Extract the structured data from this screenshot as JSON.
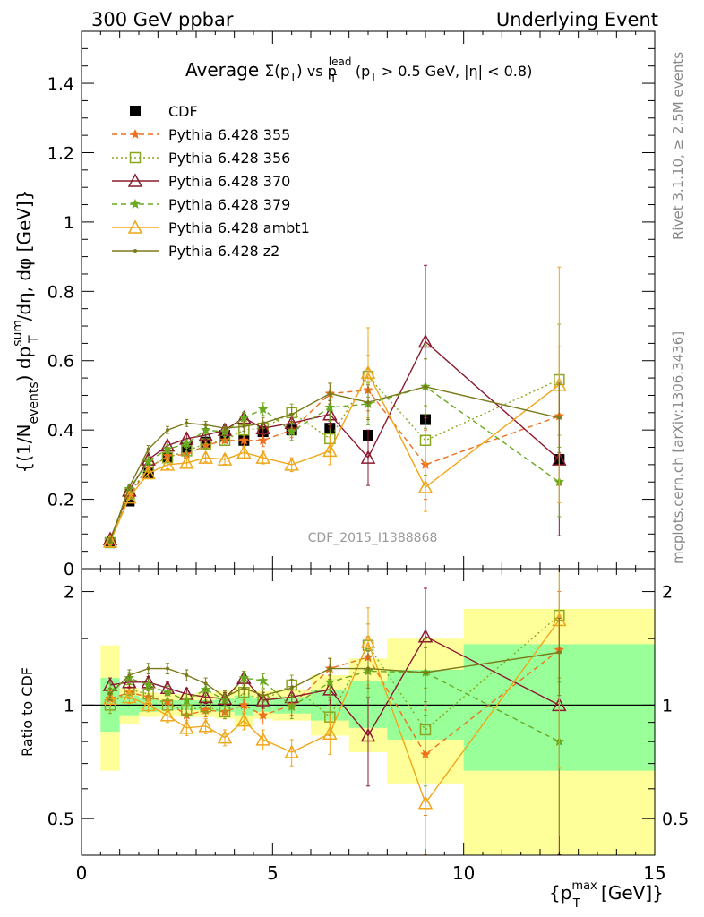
{
  "header": {
    "left": "300 GeV ppbar",
    "right": "Underlying Event"
  },
  "side_labels": {
    "rivet": "Rivet 3.1.10, ≥ 2.5M events",
    "mcplots": "mcplots.cern.ch [arXiv:1306.3436]"
  },
  "watermark": "CDF_2015_I1388868",
  "title": {
    "prefix": "Average ",
    "sigma": "Σ(p",
    "sub_t": "T",
    "close": ")",
    "vs": " vs p",
    "sup_lead": "lead",
    "sub_t2": "T",
    "cut_a": " (p",
    "sub_t3": "T",
    "cut_b": " > 0.5 GeV, |η| < 0.8)"
  },
  "ylabel_main": {
    "a": "{(1/N",
    "sub_events": "events",
    "b": ") dp",
    "sup_sum": "sum",
    "sub_t": "T",
    "c": "/dη, dφ [GeV]}"
  },
  "ylabel_ratio": "Ratio to CDF",
  "xlabel": {
    "a": "{p",
    "sup_max": "max",
    "sub_t": "T",
    "b": " [GeV]}"
  },
  "colors": {
    "data": "#000000",
    "p355": "#ee6f1c",
    "p356": "#8aa620",
    "p370": "#8b1a2f",
    "p379": "#6aaa20",
    "ambt1": "#f0a619",
    "z2": "#7a7a1a",
    "band_outer": "#ffff99",
    "band_inner": "#99ff99"
  },
  "chart_data": [
    {
      "type": "scatter",
      "panel": "main",
      "title": "Average Σ(pT) vs pT^lead (pT > 0.5 GeV, |η| < 0.8)",
      "xlabel": "{pT^max [GeV]}",
      "ylabel": "{(1/N_events) dpT^sum/dη, dφ [GeV]}",
      "xlim": [
        0,
        15
      ],
      "ylim": [
        0,
        1.55
      ],
      "yticks": [
        0,
        0.2,
        0.4,
        0.6,
        0.8,
        1,
        1.2,
        1.4
      ],
      "xticks": [
        0,
        5,
        10,
        15
      ],
      "grid": false,
      "legend_position": "top-left",
      "x": [
        0.75,
        1.25,
        1.75,
        2.25,
        2.75,
        3.25,
        3.75,
        4.25,
        4.75,
        5.5,
        6.5,
        7.5,
        9.0,
        12.5
      ],
      "series": [
        {
          "name": "CDF",
          "key": "data",
          "marker": "square",
          "line": "none",
          "values": [
            0.075,
            0.195,
            0.275,
            0.32,
            0.35,
            0.365,
            0.385,
            0.37,
            0.395,
            0.4,
            0.405,
            0.385,
            0.43,
            0.315
          ]
        },
        {
          "name": "Pythia 6.428 355",
          "key": "p355",
          "marker": "star",
          "line": "dash",
          "values": [
            0.078,
            0.21,
            0.29,
            0.325,
            0.33,
            0.355,
            0.37,
            0.37,
            0.37,
            0.4,
            0.505,
            0.515,
            0.3,
            0.44
          ],
          "err": [
            0.01,
            0.01,
            0.012,
            0.012,
            0.012,
            0.012,
            0.014,
            0.016,
            0.018,
            0.022,
            0.03,
            0.06,
            0.1,
            0.2
          ]
        },
        {
          "name": "Pythia 6.428 356",
          "key": "p356",
          "marker": "open-square",
          "line": "dot",
          "values": [
            0.075,
            0.215,
            0.295,
            0.32,
            0.34,
            0.36,
            0.37,
            0.4,
            0.405,
            0.45,
            0.375,
            0.555,
            0.37,
            0.545
          ],
          "err": [
            0.01,
            0.01,
            0.012,
            0.012,
            0.012,
            0.012,
            0.014,
            0.016,
            0.018,
            0.025,
            0.04,
            0.06,
            0.1,
            0.16
          ]
        },
        {
          "name": "Pythia 6.428 370",
          "key": "p370",
          "marker": "open-triangle",
          "line": "solid",
          "values": [
            0.085,
            0.225,
            0.315,
            0.355,
            0.375,
            0.385,
            0.4,
            0.435,
            0.405,
            0.42,
            0.445,
            0.32,
            0.655,
            0.315
          ],
          "err": [
            0.01,
            0.01,
            0.012,
            0.012,
            0.012,
            0.012,
            0.014,
            0.016,
            0.018,
            0.025,
            0.04,
            0.08,
            0.22,
            0.22
          ]
        },
        {
          "name": "Pythia 6.428 379",
          "key": "p379",
          "marker": "star",
          "line": "dash",
          "values": [
            0.082,
            0.23,
            0.31,
            0.345,
            0.36,
            0.4,
            0.395,
            0.435,
            0.46,
            0.395,
            0.465,
            0.475,
            0.525,
            0.25
          ],
          "err": [
            0.01,
            0.01,
            0.012,
            0.012,
            0.012,
            0.012,
            0.014,
            0.016,
            0.018,
            0.025,
            0.04,
            0.06,
            0.12,
            0.1
          ]
        },
        {
          "name": "Pythia 6.428 ambt1",
          "key": "ambt1",
          "marker": "open-triangle",
          "line": "solid",
          "values": [
            0.078,
            0.205,
            0.275,
            0.3,
            0.305,
            0.32,
            0.315,
            0.335,
            0.32,
            0.3,
            0.34,
            0.565,
            0.235,
            0.53
          ],
          "err": [
            0.01,
            0.01,
            0.012,
            0.012,
            0.012,
            0.012,
            0.014,
            0.016,
            0.018,
            0.02,
            0.04,
            0.13,
            0.07,
            0.34
          ]
        },
        {
          "name": "Pythia 6.428 z2",
          "key": "z2",
          "marker": "dot",
          "line": "solid",
          "values": [
            0.08,
            0.235,
            0.345,
            0.4,
            0.42,
            0.415,
            0.405,
            0.41,
            0.42,
            0.445,
            0.505,
            0.48,
            0.525,
            0.435
          ],
          "err": [
            0.008,
            0.008,
            0.01,
            0.01,
            0.01,
            0.01,
            0.012,
            0.014,
            0.016,
            0.02,
            0.03,
            0.05,
            0.08,
            0.1
          ]
        }
      ]
    },
    {
      "type": "line",
      "panel": "ratio",
      "ylabel": "Ratio to CDF",
      "xlabel": "{pT^max [GeV]}",
      "xlim": [
        0,
        15
      ],
      "ylim": [
        0.4,
        2.3
      ],
      "y_scale": "log",
      "yticks": [
        0.5,
        1,
        2
      ],
      "xticks": [
        0,
        5,
        10,
        15
      ],
      "grid": false,
      "reference_line": 1,
      "bands": {
        "bin_edges": [
          0.5,
          1.0,
          1.5,
          2.0,
          2.5,
          3.0,
          3.5,
          4.0,
          4.5,
          5.0,
          6.0,
          7.0,
          8.0,
          10.0,
          15.0
        ],
        "outer_low": [
          0.67,
          0.89,
          0.93,
          0.94,
          0.93,
          0.93,
          0.92,
          0.88,
          0.92,
          0.91,
          0.83,
          0.75,
          0.62,
          0.33
        ],
        "outer_high": [
          1.44,
          1.11,
          1.08,
          1.07,
          1.07,
          1.08,
          1.09,
          1.12,
          1.09,
          1.1,
          1.2,
          1.33,
          1.5,
          1.8
        ],
        "inner_low": [
          0.85,
          0.94,
          0.96,
          0.97,
          0.97,
          0.97,
          0.96,
          0.94,
          0.96,
          0.95,
          0.91,
          0.87,
          0.81,
          0.67
        ],
        "inner_high": [
          1.18,
          1.06,
          1.04,
          1.03,
          1.03,
          1.03,
          1.04,
          1.06,
          1.04,
          1.05,
          1.1,
          1.16,
          1.24,
          1.45
        ]
      },
      "x": [
        0.75,
        1.25,
        1.75,
        2.25,
        2.75,
        3.25,
        3.75,
        4.25,
        4.75,
        5.5,
        6.5,
        7.5,
        9.0,
        12.5
      ],
      "series": [
        {
          "name": "Pythia 6.428 355",
          "key": "p355",
          "marker": "star",
          "line": "dash",
          "values": [
            1.04,
            1.08,
            1.05,
            1.02,
            0.94,
            0.97,
            0.96,
            1.0,
            0.94,
            1.0,
            1.25,
            1.34,
            0.74,
            1.4
          ],
          "err": [
            0.05,
            0.04,
            0.04,
            0.04,
            0.04,
            0.04,
            0.04,
            0.05,
            0.05,
            0.06,
            0.08,
            0.18,
            0.23,
            0.6
          ]
        },
        {
          "name": "Pythia 6.428 356",
          "key": "p356",
          "marker": "open-square",
          "line": "dot",
          "values": [
            1.0,
            1.1,
            1.07,
            1.0,
            0.97,
            0.99,
            0.96,
            1.08,
            1.03,
            1.13,
            0.93,
            1.44,
            0.86,
            1.73
          ],
          "err": [
            0.05,
            0.04,
            0.04,
            0.04,
            0.04,
            0.04,
            0.04,
            0.05,
            0.05,
            0.07,
            0.1,
            0.2,
            0.25,
            0.55
          ]
        },
        {
          "name": "Pythia 6.428 370",
          "key": "p370",
          "marker": "open-triangle",
          "line": "solid",
          "values": [
            1.13,
            1.15,
            1.15,
            1.11,
            1.07,
            1.05,
            1.04,
            1.18,
            1.03,
            1.05,
            1.1,
            0.83,
            1.52,
            1.0
          ],
          "err": [
            0.05,
            0.04,
            0.04,
            0.04,
            0.04,
            0.04,
            0.04,
            0.05,
            0.05,
            0.07,
            0.1,
            0.22,
            0.52,
            0.7
          ]
        },
        {
          "name": "Pythia 6.428 379",
          "key": "p379",
          "marker": "star",
          "line": "dash",
          "values": [
            1.09,
            1.18,
            1.13,
            1.08,
            1.03,
            1.1,
            1.03,
            1.18,
            1.16,
            0.99,
            1.15,
            1.23,
            1.22,
            0.8
          ],
          "err": [
            0.05,
            0.04,
            0.04,
            0.04,
            0.04,
            0.04,
            0.04,
            0.05,
            0.05,
            0.07,
            0.1,
            0.18,
            0.28,
            0.35
          ]
        },
        {
          "name": "Pythia 6.428 ambt1",
          "key": "ambt1",
          "marker": "open-triangle",
          "line": "solid",
          "values": [
            1.04,
            1.05,
            1.0,
            0.94,
            0.87,
            0.88,
            0.82,
            0.91,
            0.81,
            0.75,
            0.84,
            1.47,
            0.55,
            1.68
          ],
          "err": [
            0.05,
            0.04,
            0.04,
            0.04,
            0.04,
            0.04,
            0.04,
            0.05,
            0.05,
            0.06,
            0.1,
            0.34,
            0.18,
            1.0
          ]
        },
        {
          "name": "Pythia 6.428 z2",
          "key": "z2",
          "marker": "dot",
          "line": "solid",
          "values": [
            1.07,
            1.2,
            1.25,
            1.25,
            1.2,
            1.14,
            1.05,
            1.11,
            1.06,
            1.11,
            1.25,
            1.25,
            1.22,
            1.38
          ],
          "err": [
            0.04,
            0.04,
            0.04,
            0.04,
            0.04,
            0.04,
            0.04,
            0.04,
            0.04,
            0.06,
            0.08,
            0.14,
            0.2,
            0.32
          ]
        }
      ]
    }
  ]
}
